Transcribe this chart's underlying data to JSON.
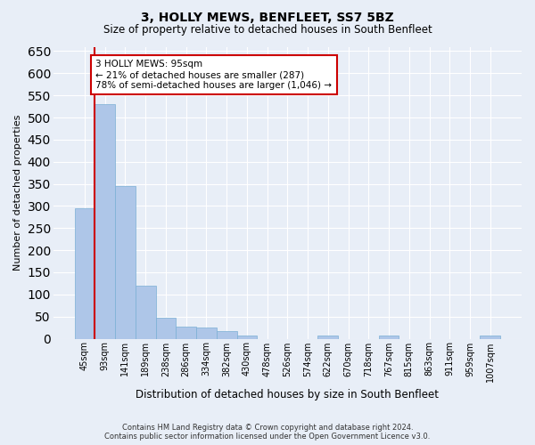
{
  "title": "3, HOLLY MEWS, BENFLEET, SS7 5BZ",
  "subtitle": "Size of property relative to detached houses in South Benfleet",
  "xlabel": "Distribution of detached houses by size in South Benfleet",
  "ylabel": "Number of detached properties",
  "footer_line1": "Contains HM Land Registry data © Crown copyright and database right 2024.",
  "footer_line2": "Contains public sector information licensed under the Open Government Licence v3.0.",
  "categories": [
    "45sqm",
    "93sqm",
    "141sqm",
    "189sqm",
    "238sqm",
    "286sqm",
    "334sqm",
    "382sqm",
    "430sqm",
    "478sqm",
    "526sqm",
    "574sqm",
    "622sqm",
    "670sqm",
    "718sqm",
    "767sqm",
    "815sqm",
    "863sqm",
    "911sqm",
    "959sqm",
    "1007sqm"
  ],
  "values": [
    295,
    530,
    345,
    120,
    48,
    28,
    25,
    18,
    8,
    0,
    0,
    0,
    8,
    0,
    0,
    8,
    0,
    0,
    0,
    0,
    8
  ],
  "bar_color": "#aec6e8",
  "bar_edge_color": "#7aafd4",
  "bg_color": "#e8eef7",
  "grid_color": "#ffffff",
  "annotation_text": "3 HOLLY MEWS: 95sqm\n← 21% of detached houses are smaller (287)\n78% of semi-detached houses are larger (1,046) →",
  "annotation_box_color": "#ffffff",
  "annotation_box_edge_color": "#cc0000",
  "property_line_color": "#cc0000",
  "property_line_x": 0.5,
  "ylim": [
    0,
    660
  ],
  "yticks": [
    0,
    50,
    100,
    150,
    200,
    250,
    300,
    350,
    400,
    450,
    500,
    550,
    600,
    650
  ]
}
